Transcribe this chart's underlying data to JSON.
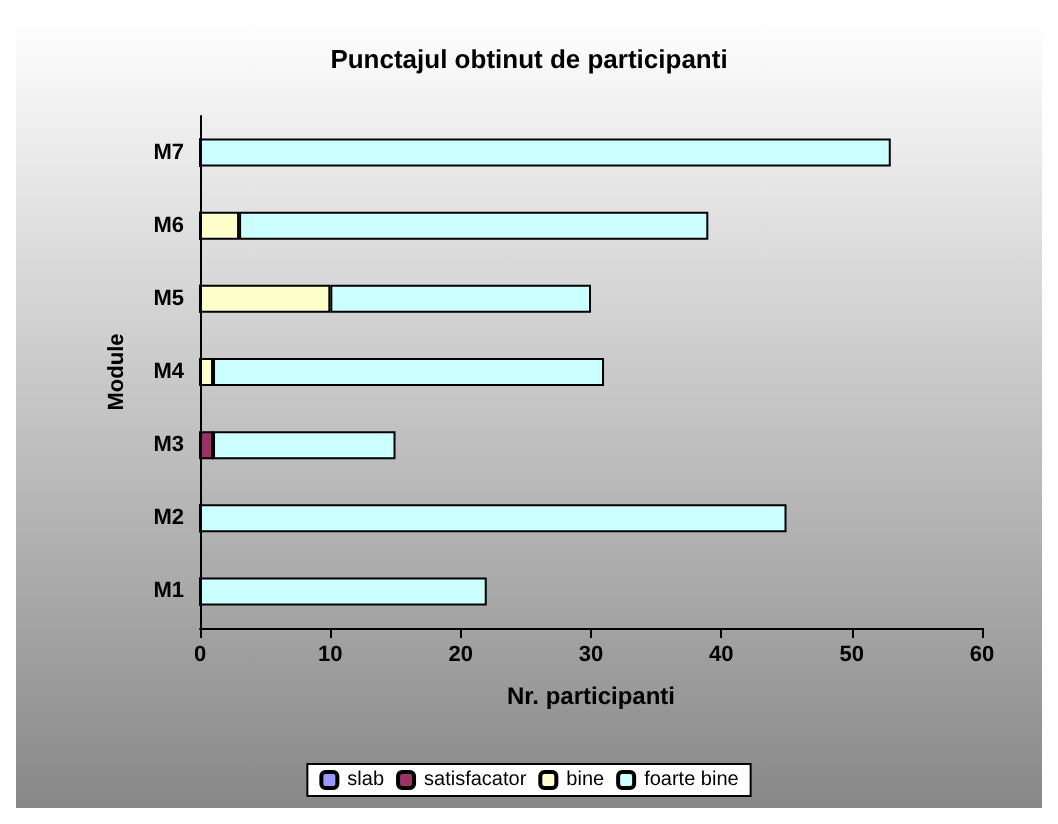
{
  "chart_data": {
    "type": "bar",
    "orientation": "horizontal",
    "stacked": true,
    "title": "Punctajul obtinut de participanti",
    "xlabel": "Nr. participanti",
    "ylabel": "Module",
    "categories": [
      "M7",
      "M6",
      "M5",
      "M4",
      "M3",
      "M2",
      "M1"
    ],
    "series": [
      {
        "name": "slab",
        "color": "#9999ff",
        "values": [
          0,
          0,
          0,
          0,
          0,
          0,
          0
        ]
      },
      {
        "name": "satisfacator",
        "color": "#993366",
        "values": [
          0,
          0,
          0,
          0,
          1,
          0,
          0
        ]
      },
      {
        "name": "bine",
        "color": "#ffffcc",
        "values": [
          0,
          3,
          10,
          1,
          0,
          0,
          0
        ]
      },
      {
        "name": "foarte bine",
        "color": "#ccffff",
        "values": [
          53,
          36,
          20,
          30,
          14,
          45,
          22
        ]
      }
    ],
    "xlim": [
      0,
      60
    ],
    "xticks": [
      0,
      10,
      20,
      30,
      40,
      50,
      60
    ],
    "grid": false,
    "legend": "bottom"
  }
}
